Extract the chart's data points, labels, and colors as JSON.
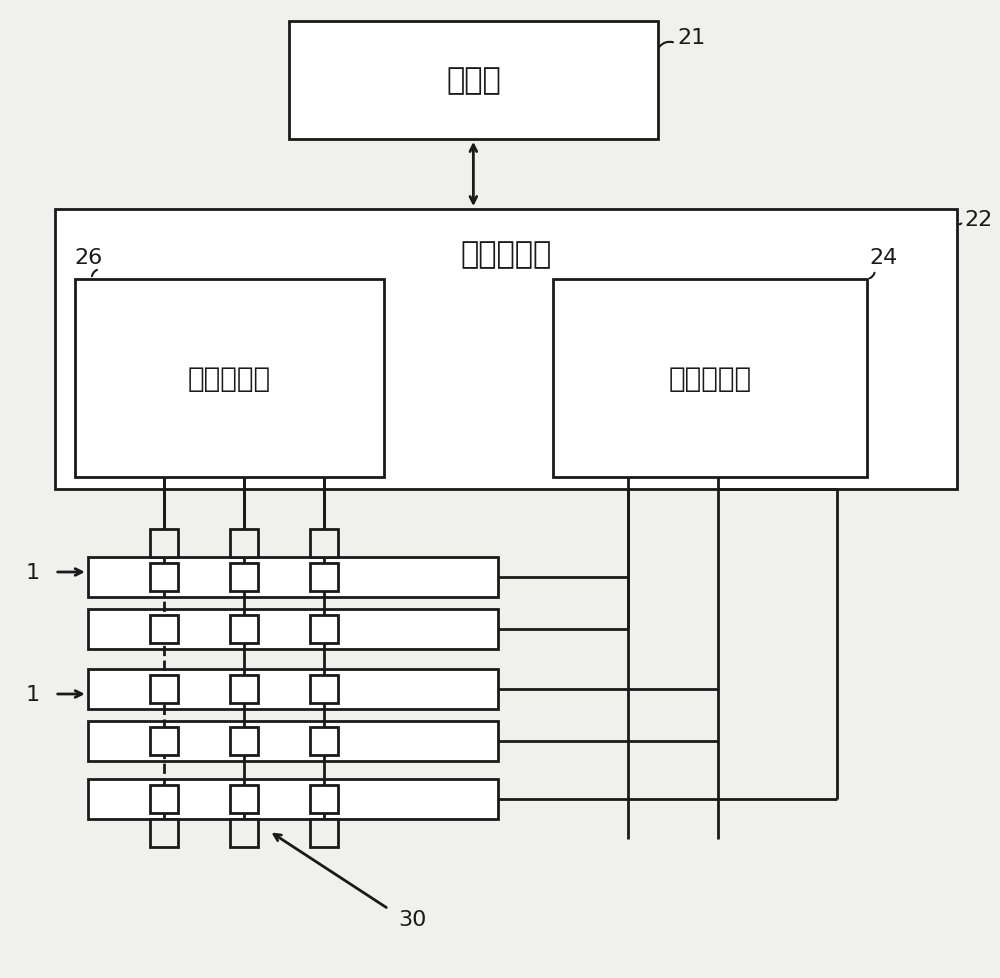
{
  "bg_color": "#f0f0ec",
  "line_color": "#1a1a1a",
  "box_fill": "#ffffff",
  "processor_label": "处理器",
  "array_driver_label": "阵列驱动器",
  "col_driver_label": "列驱动电路",
  "row_driver_label": "行驱动电路",
  "label_21": "21",
  "label_22": "22",
  "label_24": "24",
  "label_26": "26",
  "label_1a": "1",
  "label_1b": "1",
  "label_30": "30"
}
